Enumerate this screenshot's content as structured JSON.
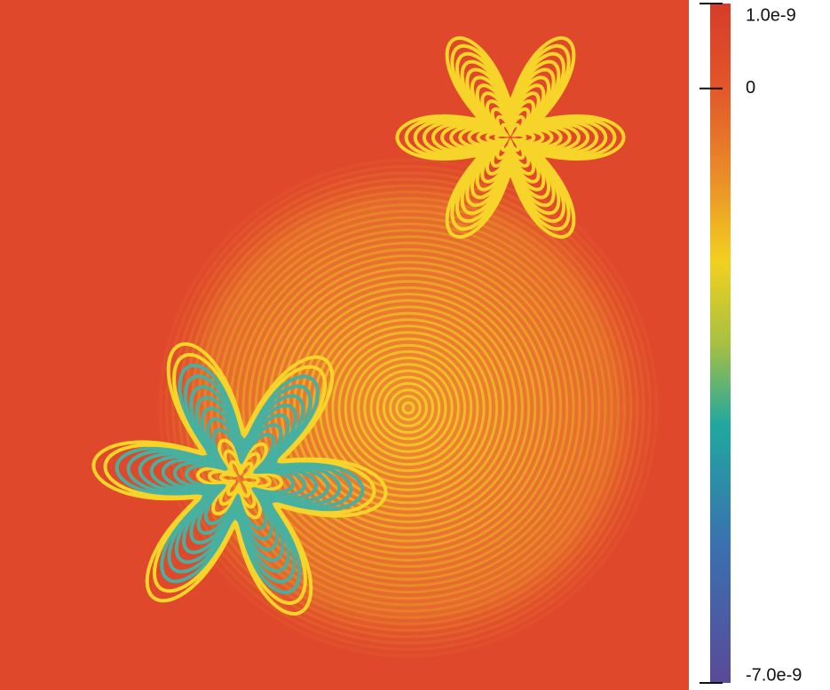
{
  "chart_data": {
    "type": "heatmap",
    "zlim": [
      -7e-09,
      1e-09
    ],
    "zticks": [
      {
        "value": 1e-09,
        "label": "1.0e-9"
      },
      0,
      {
        "value": -7e-09,
        "label": "-7.0e-9"
      }
    ]
  }
}
